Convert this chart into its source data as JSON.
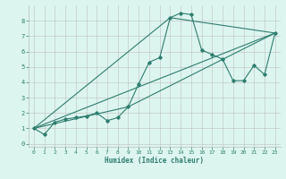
{
  "xlabel": "Humidex (Indice chaleur)",
  "bg_color": "#ddf5ef",
  "line_color": "#2d7d6e",
  "grid_color": "#bbbbbb",
  "xlim": [
    -0.5,
    23.5
  ],
  "ylim": [
    -0.2,
    9.0
  ],
  "xticks": [
    0,
    1,
    2,
    3,
    4,
    5,
    6,
    7,
    8,
    9,
    10,
    11,
    12,
    13,
    14,
    15,
    16,
    17,
    18,
    19,
    20,
    21,
    22,
    23
  ],
  "yticks": [
    0,
    1,
    2,
    3,
    4,
    5,
    6,
    7,
    8
  ],
  "line1_x": [
    0,
    1,
    2,
    3,
    4,
    5,
    6,
    7,
    8,
    9,
    10,
    11,
    12,
    13,
    14,
    15,
    16,
    17,
    18,
    19,
    20,
    21,
    22,
    23
  ],
  "line1_y": [
    1.0,
    0.6,
    1.4,
    1.6,
    1.7,
    1.8,
    2.0,
    1.5,
    1.7,
    2.4,
    3.9,
    5.3,
    5.6,
    8.2,
    8.5,
    8.4,
    6.1,
    5.8,
    5.5,
    4.1,
    4.1,
    5.1,
    4.5,
    7.2
  ],
  "line2_x": [
    0,
    13,
    23
  ],
  "line2_y": [
    1.0,
    8.2,
    7.2
  ],
  "line3_x": [
    0,
    9,
    23
  ],
  "line3_y": [
    1.0,
    2.4,
    7.2
  ],
  "line4_x": [
    0,
    23
  ],
  "line4_y": [
    1.0,
    7.2
  ]
}
